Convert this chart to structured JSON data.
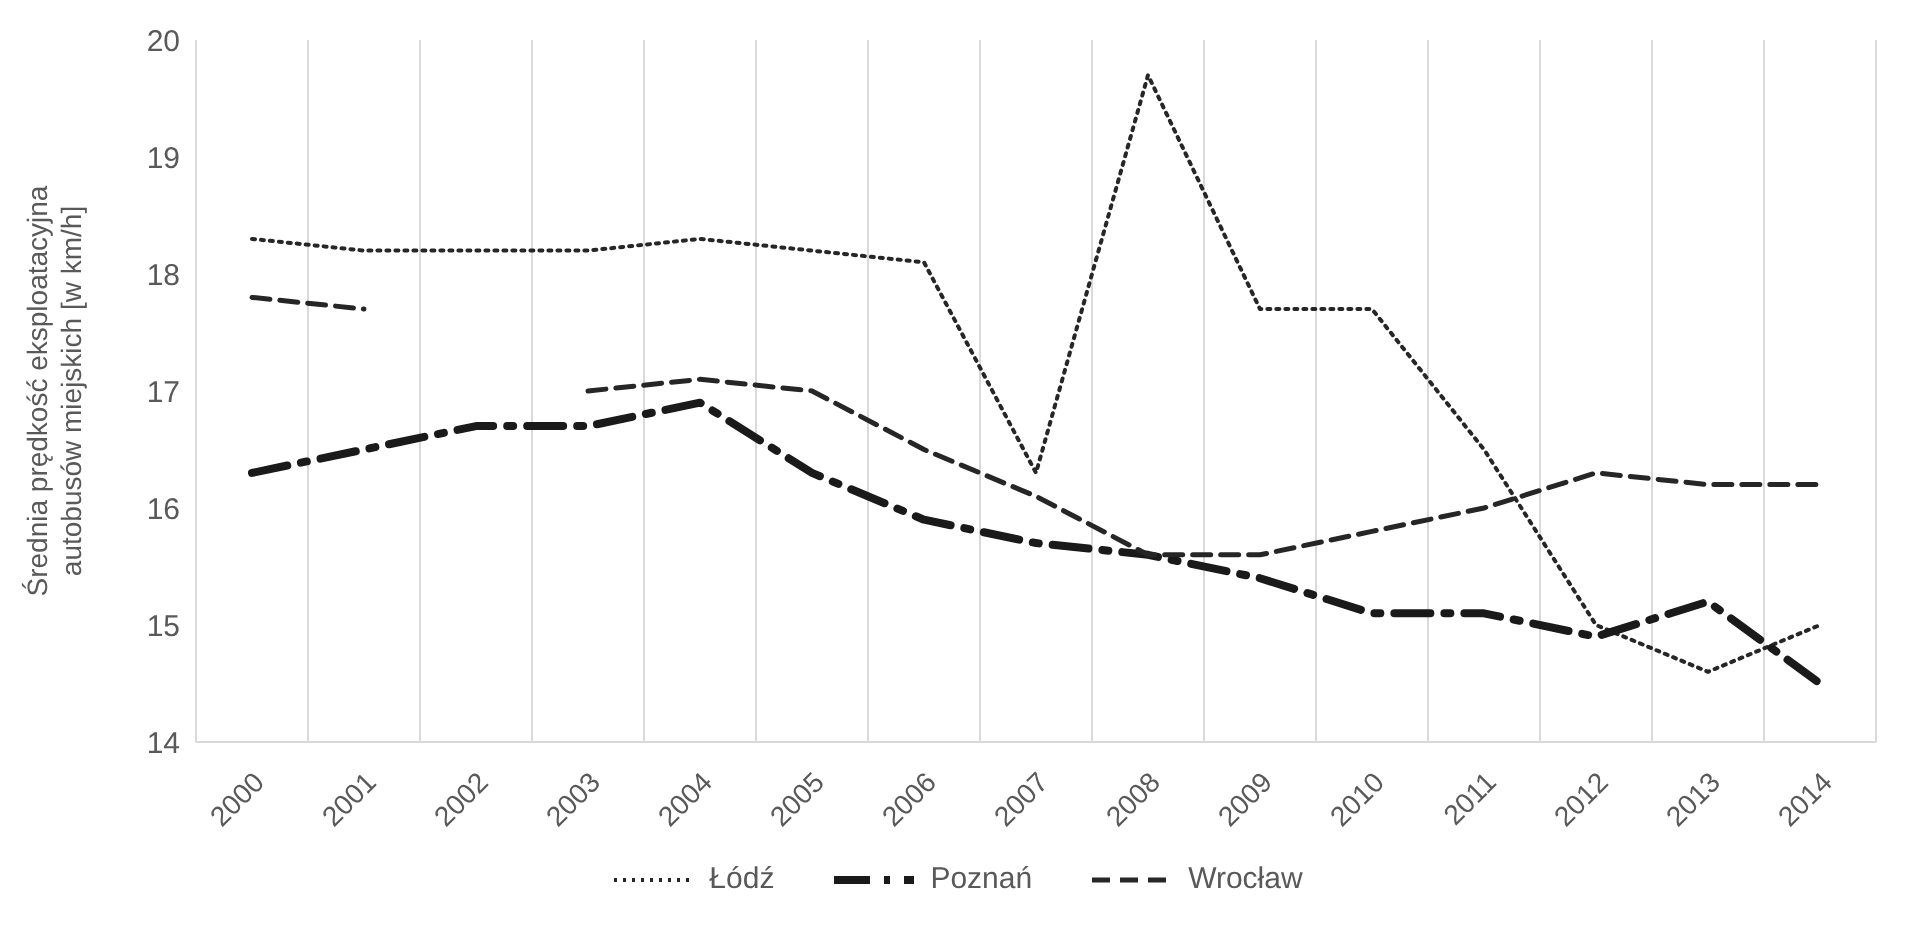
{
  "chart_data": {
    "type": "line",
    "ylabel": "Średnia prędkość eksploatacyjna autobusów miejskich [w km/h]",
    "categories": [
      "2000",
      "2001",
      "2002",
      "2003",
      "2004",
      "2005",
      "2006",
      "2007",
      "2008",
      "2009",
      "2010",
      "2011",
      "2012",
      "2013",
      "2014"
    ],
    "series": [
      {
        "name": "Łódź",
        "color": "#262626",
        "line_style": "dotted",
        "values": [
          18.3,
          18.2,
          18.2,
          18.2,
          18.3,
          18.2,
          18.1,
          16.3,
          19.7,
          17.7,
          17.7,
          16.5,
          15.0,
          14.6,
          15.0
        ]
      },
      {
        "name": "Poznań",
        "color": "#1a1a1a",
        "line_style": "dashdot",
        "values": [
          16.3,
          16.5,
          16.7,
          16.7,
          16.9,
          16.3,
          15.9,
          15.7,
          15.6,
          15.4,
          15.1,
          15.1,
          14.9,
          15.2,
          14.5
        ]
      },
      {
        "name": "Wrocław",
        "color": "#262626",
        "line_style": "dashed",
        "values": [
          17.8,
          17.7,
          null,
          17.0,
          17.1,
          17.0,
          16.5,
          16.1,
          15.6,
          15.6,
          15.8,
          16.0,
          16.3,
          16.2,
          16.2
        ]
      }
    ],
    "ylim": [
      14,
      20
    ],
    "yticks": [
      14,
      15,
      16,
      17,
      18,
      19,
      20
    ],
    "grid": "x",
    "legend": "bottom",
    "marker": "none"
  }
}
